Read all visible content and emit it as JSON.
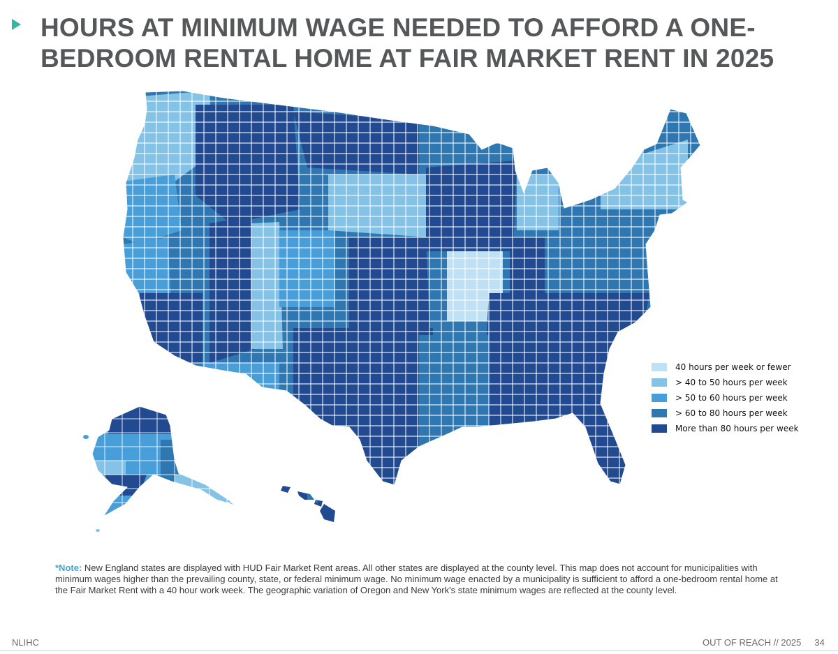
{
  "title": "HOURS AT MINIMUM WAGE NEEDED TO AFFORD A ONE-BEDROOM RENTAL HOME AT FAIR MARKET RENT IN 2025",
  "legend": [
    {
      "label": "40 hours per week or fewer",
      "color": "#bfe1f3"
    },
    {
      "label": "> 40 to 50 hours per week",
      "color": "#85c3e6"
    },
    {
      "label": "> 50 to 60 hours per week",
      "color": "#479ed8"
    },
    {
      "label": "> 60 to 80 hours per week",
      "color": "#2e77b0"
    },
    {
      "label": "More than 80 hours per week",
      "color": "#214a90"
    }
  ],
  "map": {
    "regions": [
      "contiguous-us",
      "alaska",
      "hawaii"
    ],
    "boundary_color": "#ffffff"
  },
  "note": {
    "label": "*Note:",
    "text": "New England states are displayed with HUD Fair Market Rent areas. All other states are displayed at the county level. This map does not account for municipalities with minimum wages higher than the prevailing county, state, or federal minimum wage. No minimum wage enacted by a municipality is sufficient to afford a one-bedroom rental home at the Fair Market Rent with a 40 hour work week. The geographic variation of Oregon and New York's state minimum wages are reflected at the county level."
  },
  "footer": {
    "org": "NLIHC",
    "report": "OUT OF REACH // 2025",
    "page": "34"
  }
}
